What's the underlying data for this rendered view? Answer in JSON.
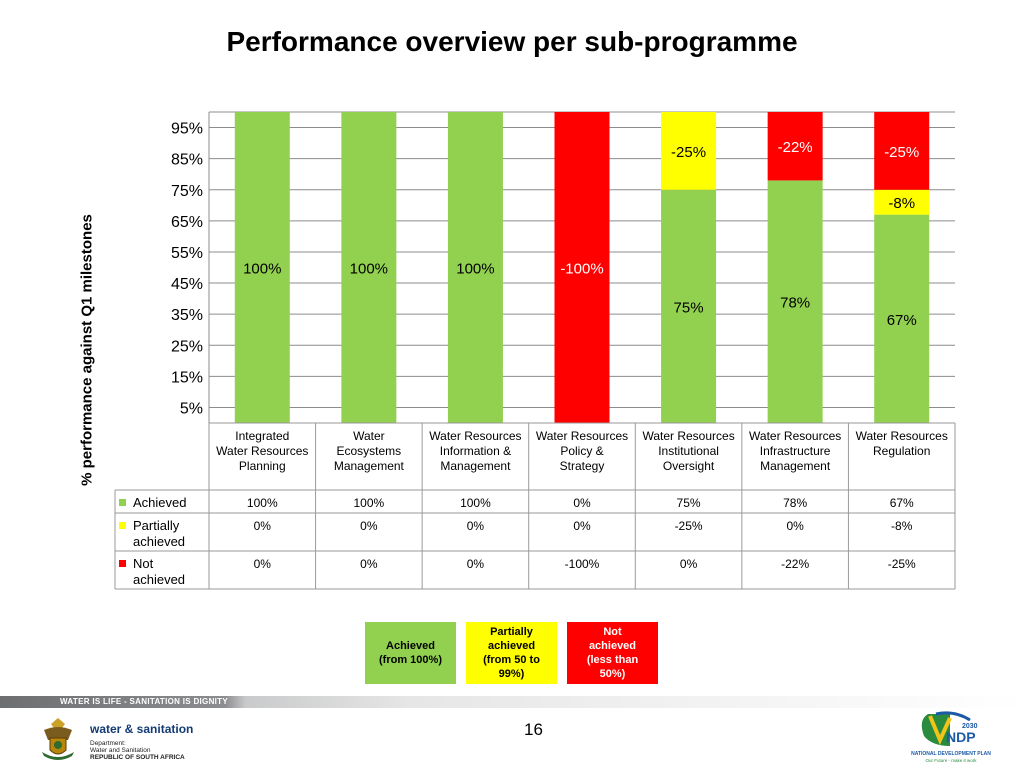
{
  "title": "Performance overview per sub-programme",
  "chart_data": {
    "type": "bar",
    "stacked": true,
    "ylabel": "% performance against Q1 milestones",
    "yticks": [
      "95%",
      "85%",
      "75%",
      "65%",
      "55%",
      "45%",
      "35%",
      "25%",
      "15%",
      "5%"
    ],
    "ytick_values": [
      95,
      85,
      75,
      65,
      55,
      45,
      35,
      25,
      15,
      5
    ],
    "ylim": [
      0,
      100
    ],
    "grid": true,
    "categories": [
      "Integrated Water Resources Planning",
      "Water Ecosystems Management",
      "Water Resources Information & Management",
      "Water Resources Policy & Strategy",
      "Water Resources Institutional Oversight",
      "Water Resources Infrastructure Management",
      "Water Resources Regulation"
    ],
    "series": [
      {
        "name": "Achieved",
        "color": "#92d050",
        "values": [
          100,
          100,
          100,
          0,
          75,
          78,
          67
        ],
        "labels": [
          "100%",
          "100%",
          "100%",
          "",
          "75%",
          "78%",
          "67%"
        ],
        "table": [
          "100%",
          "100%",
          "100%",
          "0%",
          "75%",
          "78%",
          "67%"
        ]
      },
      {
        "name": "Partially achieved",
        "color": "#ffff00",
        "values": [
          0,
          0,
          0,
          0,
          25,
          0,
          8
        ],
        "labels": [
          "",
          "",
          "",
          "",
          "-25%",
          "",
          "-8%"
        ],
        "table": [
          "0%",
          "0%",
          "0%",
          "0%",
          "-25%",
          "0%",
          "-8%"
        ]
      },
      {
        "name": "Not achieved",
        "color": "#ff0000",
        "values": [
          0,
          0,
          0,
          100,
          0,
          22,
          25
        ],
        "labels": [
          "",
          "",
          "",
          "-100%",
          "",
          "-22%",
          "-25%"
        ],
        "table": [
          "0%",
          "0%",
          "0%",
          "-100%",
          "0%",
          "-22%",
          "-25%"
        ]
      }
    ],
    "data_table": true
  },
  "legend_boxes": [
    {
      "text": "Achieved\n(from 100%)",
      "color": "#92d050"
    },
    {
      "text": "Partially\nachieved\n(from 50 to\n99%)",
      "color": "#ffff00"
    },
    {
      "text": "Not\nachieved\n(less than\n50%)",
      "color": "#ff0000"
    }
  ],
  "footer": {
    "slogan": "WATER IS LIFE - SANITATION IS DIGNITY",
    "page_number": "16",
    "dept_name": "water & sanitation",
    "dept_sub": [
      "Department:",
      "Water and Sanitation",
      "REPUBLIC OF SOUTH AFRICA"
    ],
    "ndp_year": "2030",
    "ndp_logo": "NDP",
    "ndp_name": "NATIONAL DEVELOPMENT PLAN",
    "ndp_tagline": "Our Future - make it work"
  }
}
